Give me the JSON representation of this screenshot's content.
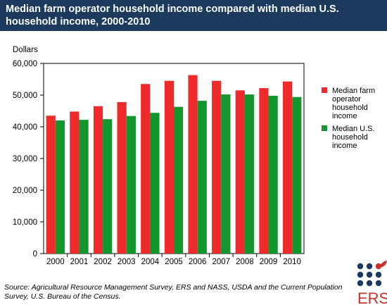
{
  "title": "Median farm operator household income compared with median U.S. household income, 2000-2010",
  "source": "Source:  Agricultural Resource Management Survey, ERS and NASS, USDA and the Current Population Survey, U.S. Bureau of the Census.",
  "logo_text": "ERS",
  "colors": {
    "farm": "#ee2a2a",
    "us": "#12962e",
    "title_bg": "#1b3a5e",
    "logo_blue": "#1b3a5e",
    "logo_red": "#c8302a"
  },
  "chart_data": {
    "type": "bar",
    "title": "Median farm operator household income compared with median U.S. household income, 2000-2010",
    "ylabel": "Dollars",
    "xlabel": "",
    "ylim": [
      0,
      60000
    ],
    "yticks": [
      0,
      10000,
      20000,
      30000,
      40000,
      50000,
      60000
    ],
    "ytick_labels": [
      "0",
      "10,000",
      "20,000",
      "30,000",
      "40,000",
      "50,000",
      "60,000"
    ],
    "grid": false,
    "legend_position": "right",
    "categories": [
      "2000",
      "2001",
      "2002",
      "2003",
      "2004",
      "2005",
      "2006",
      "2007",
      "2008",
      "2009",
      "2010"
    ],
    "series": [
      {
        "name": "Median farm operator household income",
        "legend_lines": [
          "Median farm",
          "operator",
          "household",
          "income"
        ],
        "color": "#ee2a2a",
        "values": [
          43500,
          44800,
          46500,
          47800,
          53500,
          54500,
          56300,
          54500,
          51500,
          52200,
          54300
        ]
      },
      {
        "name": "Median U.S. household income",
        "legend_lines": [
          "Median U.S.",
          "household",
          "income"
        ],
        "color": "#12962e",
        "values": [
          42000,
          42200,
          42400,
          43400,
          44400,
          46300,
          48200,
          50200,
          50200,
          49800,
          49400
        ]
      }
    ]
  }
}
